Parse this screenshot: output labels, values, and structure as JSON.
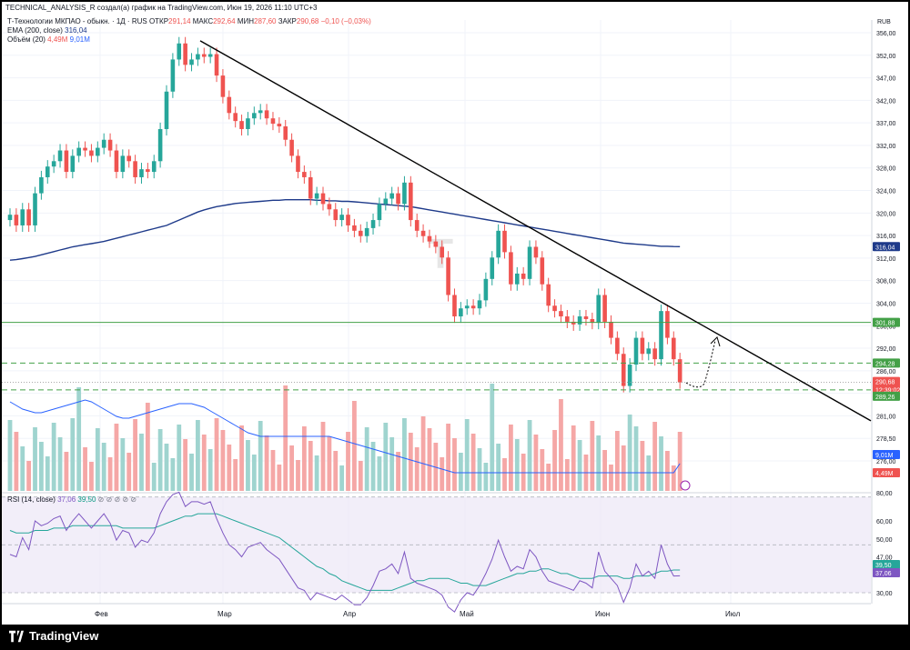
{
  "header": {
    "published_line": "TECHNICAL_ANALYSIS_R создал(а) график на TradingView.com, Июн 19, 2026 11:10 UTC+3"
  },
  "legend": {
    "symbol": "Т-Технологии МКПАО - обыкн. · 1Д · RUS",
    "open_label": "ОТКР",
    "open": "291,14",
    "high_label": "МАКС",
    "high": "292,64",
    "low_label": "МИН",
    "low": "287,60",
    "close_label": "ЗАКР",
    "close": "290,68",
    "change": "−0,10 (−0,03%)",
    "ema_label": "EMA (200, close)",
    "ema_value": "316,04",
    "vol_label": "Объём (20)",
    "vol_value": "4,49M",
    "vol_ma_value": "9,01M",
    "rsi_label": "RSI (14, close)",
    "rsi_value": "37,06",
    "rsi_ma_value": "39,50",
    "rsi_icons": "⊘ ⊘ ⊘ ⊘ ⊘"
  },
  "currency": "RUB",
  "watermark": "T",
  "price_axis": [
    "356,00",
    "352,00",
    "347,00",
    "342,00",
    "337,00",
    "332,00",
    "328,00",
    "324,00",
    "320,00",
    "316,00",
    "312,00",
    "308,00",
    "304,00",
    "298,00",
    "292,00",
    "286,00",
    "283,50",
    "281,00",
    "278,50",
    "276,00"
  ],
  "vol_axis": [
    "80,00"
  ],
  "rsi_axis": [
    "60,00",
    "50,00",
    "47,00",
    "30,00"
  ],
  "price_tags": [
    {
      "name": "ema-tag",
      "text": "316,04",
      "color": "#1e3a8a"
    },
    {
      "name": "resistance-tag",
      "text": "301,88",
      "color": "#43a047"
    },
    {
      "name": "level-upper-tag",
      "text": "294,28",
      "color": "#43a047"
    },
    {
      "name": "close-tag",
      "text": "290,68",
      "color": "#ef5350"
    },
    {
      "name": "countdown-tag",
      "text": "12:39:02",
      "color": "#ef5350"
    },
    {
      "name": "level-lower-tag",
      "text": "289,26",
      "color": "#43a047"
    },
    {
      "name": "vol-ma-tag",
      "text": "9,01M",
      "color": "#2962ff"
    },
    {
      "name": "vol-tag",
      "text": "4,49M",
      "color": "#ef5350"
    },
    {
      "name": "rsi-ma-tag",
      "text": "39,50",
      "color": "#26a69a"
    },
    {
      "name": "rsi-tag",
      "text": "37,06",
      "color": "#7e57c2"
    }
  ],
  "time_axis": [
    "Фев",
    "Мар",
    "Апр",
    "Май",
    "Июн",
    "Июл"
  ],
  "brand": "TradingView",
  "colors": {
    "up": "#26a69a",
    "down": "#ef5350",
    "ema": "#1e3a8a",
    "level": "#43a047",
    "trend": "#000000",
    "rsi": "#7e57c2",
    "rsi_ma": "#26a69a"
  },
  "chart_data": {
    "type": "candlestick",
    "x_range": [
      "Янв",
      "Июл"
    ],
    "price_range": [
      276,
      358
    ],
    "rsi_range": [
      25,
      80
    ],
    "rsi_band": [
      30,
      70
    ],
    "horizontal_levels": [
      {
        "value": 301.88,
        "style": "solid"
      },
      {
        "value": 294.28,
        "style": "dashed"
      },
      {
        "value": 289.26,
        "style": "dashed"
      }
    ],
    "trendline": {
      "from_value": 354.5,
      "to_value": 283.5
    },
    "close": [
      322.0,
      320.0,
      323.0,
      320.0,
      326.0,
      329.0,
      331.0,
      332.0,
      334.0,
      330.0,
      333.0,
      334.5,
      334.0,
      333.0,
      334.5,
      336.0,
      334.0,
      330.0,
      333.0,
      332.0,
      329.0,
      330.5,
      330.0,
      332.0,
      338.0,
      345.0,
      351.0,
      354.0,
      350.0,
      351.0,
      352.0,
      351.5,
      352.0,
      348.0,
      344.0,
      341.0,
      339.5,
      338.0,
      340.0,
      341.0,
      341.5,
      340.0,
      339.0,
      338.5,
      336.0,
      333.0,
      330.0,
      329.0,
      325.0,
      326.0,
      324.0,
      323.0,
      321.0,
      322.0,
      320.0,
      319.0,
      318.0,
      319.5,
      321.0,
      324.0,
      325.0,
      326.0,
      324.0,
      328.0,
      321.0,
      319.0,
      318.0,
      317.0,
      316.0,
      314.0,
      307.0,
      303.0,
      304.5,
      305.0,
      304.5,
      306.0,
      310.0,
      314.0,
      319.0,
      315.0,
      309.0,
      311.0,
      310.0,
      316.0,
      314.0,
      309.0,
      305.0,
      304.0,
      303.0,
      302.0,
      301.5,
      303.0,
      302.5,
      301.8,
      307.0,
      302.0,
      299.0,
      296.0,
      290.0,
      294.0,
      299.0,
      296.0,
      297.0,
      295.0,
      304.0,
      299.0,
      295.0,
      290.68
    ],
    "volume_ma": [
      280.9,
      280.7,
      280.5,
      280.4,
      280.3,
      280.3,
      280.4,
      280.5,
      280.6,
      280.7,
      280.8,
      280.9,
      281.0,
      280.9,
      280.7,
      280.5,
      280.3,
      280.1,
      280.0,
      280.0,
      280.1,
      280.2,
      280.3,
      280.4,
      280.5,
      280.6,
      280.7,
      280.8,
      280.8,
      280.8,
      280.7,
      280.6,
      280.4,
      280.2,
      280.0,
      279.8,
      279.6,
      279.4,
      279.2,
      279.1,
      279.0,
      279.0,
      279.0,
      279.0,
      279.0,
      279.0,
      279.0,
      279.0,
      279.0,
      279.0,
      279.0,
      279.0,
      278.9,
      278.8,
      278.7,
      278.6,
      278.5,
      278.4,
      278.3,
      278.2,
      278.1,
      278.0,
      277.9,
      277.8,
      277.7,
      277.6,
      277.5,
      277.4,
      277.3,
      277.2,
      277.1,
      277.0,
      277.0,
      277.0,
      277.0,
      277.0,
      277.0,
      277.0,
      277.0,
      277.0,
      277.0,
      277.0,
      277.0,
      277.0,
      277.0,
      277.0,
      277.0,
      277.0,
      277.0,
      277.0,
      277.0,
      277.0,
      277.0,
      277.0,
      277.0,
      277.0,
      277.0,
      277.0,
      277.0,
      277.0,
      277.0,
      277.0,
      277.0,
      277.0,
      277.0,
      277.0,
      277.0,
      277.5
    ],
    "ema_200": [
      313.5,
      313.6,
      313.8,
      314.0,
      314.2,
      314.5,
      314.8,
      315.1,
      315.4,
      315.7,
      316.0,
      316.2,
      316.4,
      316.6,
      316.8,
      317.0,
      317.3,
      317.6,
      317.9,
      318.2,
      318.5,
      318.8,
      319.1,
      319.4,
      319.7,
      320.0,
      320.5,
      321.0,
      321.5,
      322.0,
      322.5,
      322.9,
      323.2,
      323.5,
      323.7,
      323.9,
      324.1,
      324.2,
      324.3,
      324.4,
      324.5,
      324.6,
      324.7,
      324.7,
      324.8,
      324.8,
      324.8,
      324.8,
      324.8,
      324.7,
      324.7,
      324.6,
      324.6,
      324.5,
      324.5,
      324.4,
      324.3,
      324.2,
      324.1,
      324.0,
      323.9,
      323.8,
      323.7,
      323.6,
      323.5,
      323.3,
      323.1,
      322.9,
      322.7,
      322.5,
      322.3,
      322.1,
      321.9,
      321.7,
      321.5,
      321.3,
      321.1,
      320.9,
      320.7,
      320.5,
      320.3,
      320.1,
      319.9,
      319.7,
      319.5,
      319.3,
      319.1,
      318.9,
      318.7,
      318.5,
      318.3,
      318.1,
      317.9,
      317.7,
      317.5,
      317.3,
      317.1,
      316.9,
      316.7,
      316.6,
      316.5,
      316.4,
      316.3,
      316.2,
      316.1,
      316.1,
      316.05,
      316.04
    ],
    "rsi": [
      46,
      45,
      53,
      48,
      60,
      58,
      59,
      61,
      62,
      56,
      60,
      63,
      60,
      57,
      60,
      63,
      59,
      52,
      56,
      55,
      49,
      52,
      51,
      55,
      63,
      68,
      71,
      72,
      66,
      68,
      68,
      67,
      68,
      61,
      55,
      50,
      48,
      45,
      49,
      50,
      51,
      48,
      46,
      44,
      40,
      36,
      32,
      31,
      27,
      30,
      29,
      28,
      27,
      29,
      27,
      25,
      25,
      28,
      33,
      39,
      40,
      42,
      38,
      47,
      36,
      34,
      33,
      32,
      31,
      29,
      24,
      22,
      27,
      30,
      29,
      33,
      38,
      44,
      52,
      45,
      39,
      41,
      40,
      48,
      45,
      39,
      35,
      34,
      33,
      32,
      31,
      35,
      34,
      32,
      47,
      39,
      36,
      33,
      26,
      32,
      42,
      37,
      39,
      36,
      50,
      42,
      37,
      37.06
    ],
    "rsi_ma": [
      56,
      55,
      55,
      55,
      56,
      56,
      56,
      57,
      57,
      57,
      58,
      58,
      58,
      58,
      58,
      58,
      58,
      58,
      57,
      57,
      57,
      57,
      57,
      57,
      58,
      59,
      60,
      61,
      62,
      62,
      63,
      63,
      63,
      63,
      62,
      61,
      60,
      59,
      58,
      57,
      56,
      55,
      54,
      53,
      51,
      49,
      47,
      45,
      43,
      41,
      40,
      38,
      37,
      35,
      34,
      33,
      32,
      31,
      31,
      31,
      31,
      31,
      32,
      33,
      34,
      35,
      35,
      36,
      36,
      36,
      36,
      35,
      34,
      34,
      33,
      33,
      33,
      34,
      35,
      36,
      37,
      38,
      38,
      39,
      39,
      40,
      40,
      39,
      38,
      38,
      37,
      36,
      36,
      36,
      37,
      37,
      37,
      37,
      36,
      36,
      37,
      37,
      37,
      38,
      39,
      39,
      39.5,
      39.5
    ]
  }
}
